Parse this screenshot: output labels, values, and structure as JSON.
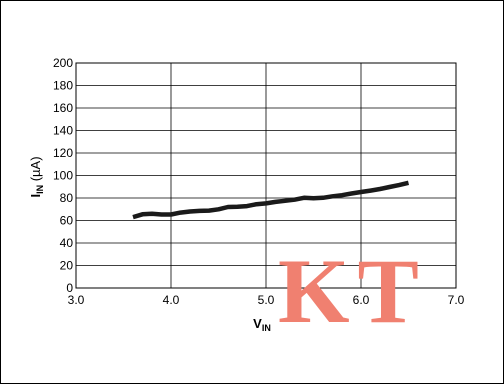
{
  "chart_data": {
    "type": "line",
    "title": "",
    "xlabel": {
      "main": "V",
      "sub": "IN"
    },
    "ylabel": {
      "main": "I",
      "sub": "IN",
      "unit": " (µA)"
    },
    "xlim": [
      3.0,
      7.0
    ],
    "ylim": [
      0,
      200
    ],
    "x_ticks": [
      "3.0",
      "4.0",
      "5.0",
      "6.0",
      "7.0"
    ],
    "y_ticks": [
      "0",
      "20",
      "40",
      "60",
      "80",
      "100",
      "120",
      "140",
      "160",
      "180",
      "200"
    ],
    "grid": {
      "vertical_major": true,
      "horizontal_every": 20
    },
    "series": [
      {
        "color": "#1a1a1a",
        "points": [
          [
            3.6,
            63
          ],
          [
            3.7,
            65.5
          ],
          [
            3.8,
            66
          ],
          [
            3.9,
            65.3
          ],
          [
            4.0,
            65.3
          ],
          [
            4.1,
            67
          ],
          [
            4.2,
            68
          ],
          [
            4.3,
            68.5
          ],
          [
            4.4,
            68.8
          ],
          [
            4.5,
            70
          ],
          [
            4.6,
            72
          ],
          [
            4.7,
            72.2
          ],
          [
            4.8,
            72.8
          ],
          [
            4.9,
            74.5
          ],
          [
            5.0,
            75.2
          ],
          [
            5.1,
            76.5
          ],
          [
            5.2,
            77.5
          ],
          [
            5.3,
            78.5
          ],
          [
            5.4,
            80.2
          ],
          [
            5.5,
            79.8
          ],
          [
            5.6,
            80.2
          ],
          [
            5.7,
            81.5
          ],
          [
            5.8,
            82.5
          ],
          [
            5.9,
            84
          ],
          [
            6.0,
            85.3
          ],
          [
            6.1,
            86.6
          ],
          [
            6.2,
            88
          ],
          [
            6.3,
            89.8
          ],
          [
            6.4,
            91.5
          ],
          [
            6.5,
            93.5
          ]
        ]
      }
    ]
  },
  "watermark": {
    "text": "KT",
    "color": "#f08070"
  }
}
